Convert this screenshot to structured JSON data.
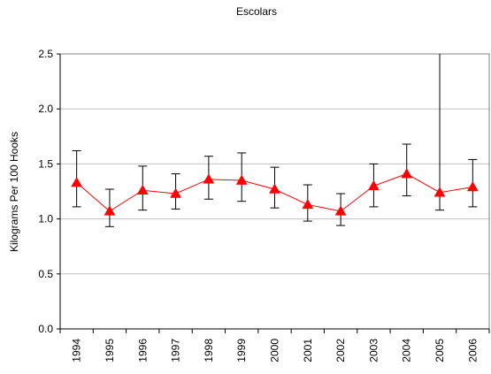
{
  "chart_data": {
    "type": "line",
    "title": "Escolars",
    "xlabel": "",
    "ylabel": "Kilograms Per 100 Hooks",
    "ylim": [
      0,
      2.5
    ],
    "yticks": [
      "0.0",
      "0.5",
      "1.0",
      "1.5",
      "2.0",
      "2.5"
    ],
    "categories": [
      "1994",
      "1995",
      "1996",
      "1997",
      "1998",
      "1999",
      "2000",
      "2001",
      "2002",
      "2003",
      "2004",
      "2005",
      "2006"
    ],
    "grid": true,
    "legend": "none",
    "series": [
      {
        "values": [
          1.33,
          1.07,
          1.26,
          1.23,
          1.36,
          1.35,
          1.27,
          1.13,
          1.07,
          1.3,
          1.41,
          1.24,
          1.29
        ],
        "lower": [
          1.11,
          0.93,
          1.08,
          1.09,
          1.18,
          1.16,
          1.1,
          0.98,
          0.94,
          1.11,
          1.21,
          1.08,
          1.11
        ],
        "upper": [
          1.62,
          1.27,
          1.48,
          1.41,
          1.57,
          1.6,
          1.47,
          1.31,
          1.23,
          1.5,
          1.68,
          2.5,
          1.54
        ],
        "color": "#ff0000",
        "marker": "triangle"
      }
    ]
  }
}
